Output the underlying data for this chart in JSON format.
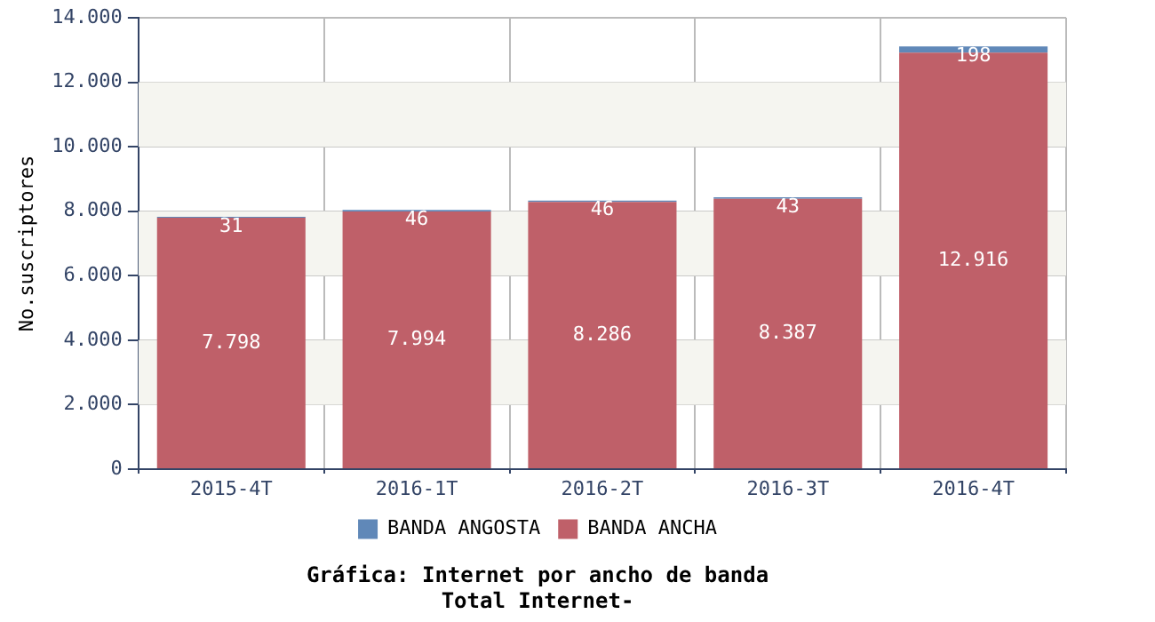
{
  "chart_data": {
    "type": "bar",
    "title": "Gráfica: Internet por ancho de banda",
    "subtitle": "Total Internet-",
    "ylabel": "No.suscriptores",
    "categories": [
      "2015-4T",
      "2016-1T",
      "2016-2T",
      "2016-3T",
      "2016-4T"
    ],
    "stacked": true,
    "series": [
      {
        "name": "BANDA ANCHA",
        "color": "#bf6069",
        "values": [
          7798,
          7994,
          8286,
          8387,
          12916
        ],
        "value_labels": [
          "7.798",
          "7.994",
          "8.286",
          "8.387",
          "12.916"
        ]
      },
      {
        "name": "BANDA ANGOSTA",
        "color": "#6088b8",
        "values": [
          31,
          46,
          46,
          43,
          198
        ],
        "value_labels": [
          "31",
          "46",
          "46",
          "43",
          "198"
        ]
      }
    ],
    "ylim": [
      0,
      14000
    ],
    "yticks": [
      {
        "value": 0,
        "label": "0"
      },
      {
        "value": 2000,
        "label": "2.000"
      },
      {
        "value": 4000,
        "label": "4.000"
      },
      {
        "value": 6000,
        "label": "6.000"
      },
      {
        "value": 8000,
        "label": "8.000"
      },
      {
        "value": 10000,
        "label": "10.000"
      },
      {
        "value": 12000,
        "label": "12.000"
      },
      {
        "value": 14000,
        "label": "14.000"
      }
    ],
    "bands": [
      {
        "axis": "y",
        "from": 2000,
        "to": 4000,
        "color": "#f5f5f0"
      },
      {
        "axis": "y",
        "from": 6000,
        "to": 8000,
        "color": "#f5f5f0"
      },
      {
        "axis": "y",
        "from": 10000,
        "to": 12000,
        "color": "#f5f5f0"
      }
    ],
    "grid": true,
    "legend": "bottom"
  }
}
